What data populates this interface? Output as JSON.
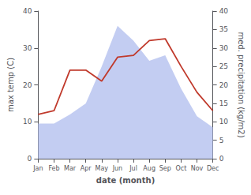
{
  "chart_data": {
    "type": "line",
    "xlabel": "date (month)",
    "ylabel": "max temp (C)",
    "y2label": "med. precipitation (kg/m2)",
    "categories": [
      "Jan",
      "Feb",
      "Mar",
      "Apr",
      "May",
      "Jun",
      "Jul",
      "Aug",
      "Sep",
      "Oct",
      "Nov",
      "Dec"
    ],
    "series": [
      {
        "type": "area",
        "axis": "y2",
        "color": "#b8c4f0",
        "values": [
          9.5,
          9.5,
          12.0,
          15.0,
          25.0,
          36.0,
          32.0,
          26.5,
          28.0,
          19.0,
          11.5,
          8.5
        ]
      },
      {
        "type": "line",
        "color": "#c0392b",
        "values": [
          12.0,
          13.0,
          24.0,
          24.0,
          21.0,
          27.5,
          28.0,
          32.0,
          32.5,
          25.0,
          18.0,
          13.0
        ]
      }
    ],
    "ylim": [
      0,
      40
    ],
    "yticks": [
      0,
      10,
      20,
      30,
      40
    ],
    "y2lim": [
      0,
      40
    ],
    "y2ticks": [
      0,
      5,
      10,
      15,
      20,
      25,
      30,
      35,
      40
    ],
    "grid": false
  }
}
